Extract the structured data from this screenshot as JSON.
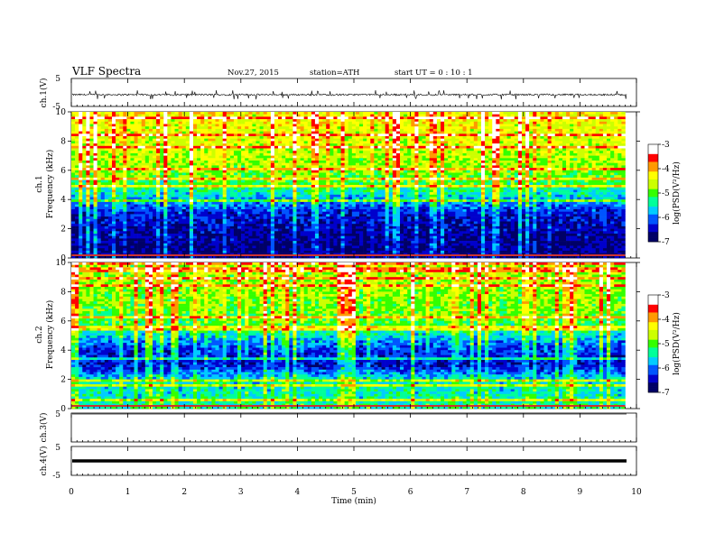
{
  "header": {
    "title": "VLF  Spectra",
    "date": "Nov.27, 2015",
    "station": "station=ATH",
    "start_ut": "start  UT  =   0  : 10 : 1"
  },
  "colors": {
    "scale": [
      "#000066",
      "#0000cc",
      "#0055ff",
      "#00ccff",
      "#00ff99",
      "#33ff00",
      "#ccff00",
      "#ffff00",
      "#ff9900",
      "#ff0000",
      "#ffffff"
    ],
    "waveform": "#000000"
  },
  "chart_data": [
    {
      "type": "line",
      "panel": "ch.1",
      "ylabel": "ch.1(V)",
      "ylim": [
        -5,
        5
      ],
      "yticks": [
        "5",
        "-5"
      ],
      "description_values": {
        "mean": -0.8,
        "noise_amplitude": 0.6,
        "spike_min": -2.5,
        "spike_max": 0.8
      }
    },
    {
      "type": "heatmap",
      "panel": "ch.1",
      "ylabel_top": "ch.1",
      "ylabel": "Frequency (kHz)",
      "ylim": [
        0,
        10
      ],
      "yticks": [
        "0",
        "2",
        "4",
        "6",
        "8",
        "10"
      ],
      "xlim": [
        0,
        9.8
      ],
      "colorbar": {
        "label": "log(PSD(V²/Hz)",
        "range": [
          -7,
          -3
        ],
        "ticks": [
          "-3",
          "-4",
          "-5",
          "-6",
          "-7"
        ]
      },
      "profile_kHz_logPSD": [
        [
          0,
          -6.8
        ],
        [
          2,
          -6.6
        ],
        [
          3,
          -6.4
        ],
        [
          4,
          -5.8
        ],
        [
          5,
          -5.2
        ],
        [
          6,
          -4.8
        ],
        [
          8,
          -4.5
        ],
        [
          10,
          -4.3
        ]
      ]
    },
    {
      "type": "heatmap",
      "panel": "ch.2",
      "ylabel_top": "ch.2",
      "ylabel": "Frequency (kHz)",
      "ylim": [
        0,
        10
      ],
      "yticks": [
        "0",
        "2",
        "4",
        "6",
        "8",
        "10"
      ],
      "xlim": [
        0,
        9.8
      ],
      "colorbar": {
        "label": "log(PSD(V²/Hz)",
        "range": [
          -7,
          -3
        ],
        "ticks": [
          "-3",
          "-4",
          "-5",
          "-6",
          "-7"
        ]
      },
      "profile_kHz_logPSD": [
        [
          0,
          -5.4
        ],
        [
          1,
          -5.5
        ],
        [
          2,
          -5.6
        ],
        [
          3,
          -6.5
        ],
        [
          4,
          -6.3
        ],
        [
          5,
          -5.6
        ],
        [
          6,
          -5.0
        ],
        [
          8,
          -4.8
        ],
        [
          10,
          -4.7
        ]
      ]
    },
    {
      "type": "line",
      "panel": "ch.3",
      "ylabel": "ch.3(V)",
      "ylim": [
        -5,
        5
      ],
      "yticks": [
        "5"
      ],
      "description_values": {
        "mean": -5.0
      }
    },
    {
      "type": "line",
      "panel": "ch.4",
      "ylabel": "ch.4(V)",
      "ylim": [
        -5,
        5
      ],
      "yticks": [
        "5",
        "-5"
      ],
      "description_values": {
        "mean": 0.0
      }
    }
  ],
  "xaxis": {
    "label": "Time  (min)",
    "xlim": [
      0,
      10
    ],
    "ticks": [
      "0",
      "1",
      "2",
      "3",
      "4",
      "5",
      "6",
      "7",
      "8",
      "9",
      "10"
    ]
  }
}
